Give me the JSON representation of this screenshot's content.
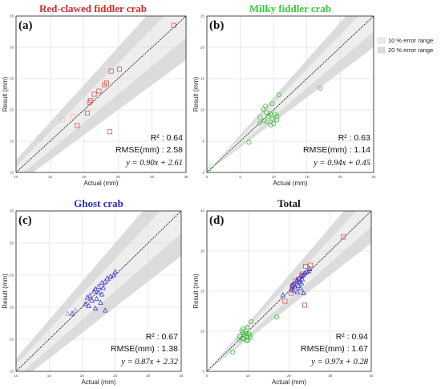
{
  "legend": {
    "placement": "top-right",
    "items": [
      {
        "label": "10 % error range",
        "color": "#eeeeee"
      },
      {
        "label": "20 % error range",
        "color": "#dcdcdc"
      }
    ]
  },
  "chart_data": [
    {
      "type": "scatter",
      "tag": "(a)",
      "title": "Red-clawed fiddler crab",
      "title_color": "#d22b2b",
      "xlabel": "Actual (mm)",
      "ylabel": "Result (mm)",
      "xlim": [
        10,
        35
      ],
      "ylim": [
        10,
        35
      ],
      "xticks": [
        10,
        15,
        20,
        25,
        30,
        35
      ],
      "yticks": [
        10,
        15,
        20,
        25,
        30,
        35
      ],
      "grid": true,
      "marker": "square",
      "series": [
        {
          "color": "#d9534f",
          "x": [
            33.2,
            25.2,
            24.0,
            23.3,
            23.0,
            22.2,
            21.5,
            21.0,
            20.8,
            20.5,
            19.0,
            23.8
          ],
          "y": [
            33.5,
            26.5,
            26.2,
            24.3,
            24.0,
            23.0,
            22.5,
            21.5,
            21.2,
            19.5,
            17.5,
            16.5
          ]
        },
        {
          "color": "#f2b8b5",
          "x": [
            18.4,
            16.8,
            13.5
          ],
          "y": [
            19.0,
            18.4,
            15.6
          ]
        }
      ],
      "stats": {
        "r2": "R² : 0.64",
        "rmse": "RMSE(mm) : 2.58",
        "equation": "y = 0.90x + 2.61"
      }
    },
    {
      "type": "scatter",
      "tag": "(b)",
      "title": "Milky fiddler crab",
      "title_color": "#3ec93e",
      "xlabel": "Actual (mm)",
      "ylabel": "Result (mm)",
      "xlim": [
        0,
        25
      ],
      "ylim": [
        0,
        25
      ],
      "xticks": [
        0,
        5,
        10,
        15,
        20,
        25
      ],
      "yticks": [
        0,
        5,
        10,
        15,
        20,
        25
      ],
      "grid": true,
      "marker": "circle",
      "series": [
        {
          "color": "#3dbf3d",
          "x": [
            17.0,
            10.8,
            9.8,
            8.8,
            8.5,
            8.9,
            9.5,
            10.2,
            10.5,
            9.2,
            8.0,
            9.8,
            10.5,
            8.6,
            9.0,
            7.9,
            10.0,
            9.6,
            6.3
          ],
          "y": [
            13.5,
            12.4,
            11.0,
            10.6,
            10.1,
            9.6,
            9.4,
            9.3,
            9.0,
            9.0,
            8.8,
            8.6,
            8.4,
            8.3,
            8.1,
            7.9,
            7.8,
            7.6,
            4.8
          ]
        },
        {
          "color": "#a8e6a8",
          "x": [
            0.8,
            0.4
          ],
          "y": [
            1.0,
            0.5
          ]
        }
      ],
      "stats": {
        "r2": "R² : 0.63",
        "rmse": "RMSE(mm) : 1.14",
        "equation": "y = 0.94x + 0.45"
      }
    },
    {
      "type": "scatter",
      "tag": "(c)",
      "title": "Ghost crab",
      "title_color": "#2a2ad0",
      "xlabel": "Actual (mm)",
      "ylabel": "Result (mm)",
      "xlim": [
        10,
        35
      ],
      "ylim": [
        10,
        35
      ],
      "xticks": [
        10,
        15,
        20,
        25,
        30,
        35
      ],
      "yticks": [
        10,
        15,
        20,
        25,
        30,
        35
      ],
      "grid": true,
      "marker": "triangle",
      "series": [
        {
          "color": "#3a3ad6",
          "x": [
            25.0,
            24.8,
            24.3,
            23.8,
            23.5,
            23.0,
            22.5,
            23.2,
            22.0,
            21.8,
            22.5,
            23.0,
            21.2,
            20.8,
            22.2,
            21.5,
            22.8,
            20.5,
            21.0,
            22.0,
            23.5,
            18.5
          ],
          "y": [
            25.5,
            25.0,
            24.8,
            24.5,
            24.0,
            23.8,
            23.2,
            23.0,
            22.8,
            22.5,
            22.3,
            22.0,
            21.8,
            21.5,
            21.3,
            21.0,
            20.7,
            20.5,
            20.2,
            19.8,
            19.5,
            19.0
          ]
        },
        {
          "color": "#9a9ae8",
          "x": [
            19.0,
            17.8
          ],
          "y": [
            19.5,
            19.0
          ]
        }
      ],
      "stats": {
        "r2": "R² : 0.67",
        "rmse": "RMSE(mm) : 1.38",
        "equation": "y = 0.87x + 2.32"
      }
    },
    {
      "type": "scatter",
      "tag": "(d)",
      "title": "Total",
      "title_color": "#111111",
      "xlabel": "Actual (mm)",
      "ylabel": "Result (mm)",
      "xlim": [
        0,
        40
      ],
      "ylim": [
        0,
        40
      ],
      "xticks": [
        0,
        10,
        20,
        30,
        40
      ],
      "yticks": [
        0,
        10,
        20,
        30,
        40
      ],
      "grid": true,
      "marker": "mixed",
      "series": [
        {
          "marker": "square",
          "color": "#d9534f",
          "x": [
            33.2,
            25.2,
            24.0,
            23.3,
            23.0,
            22.2,
            21.5,
            21.0,
            20.8,
            20.5,
            19.0,
            23.8
          ],
          "y": [
            33.5,
            26.5,
            26.2,
            24.3,
            24.0,
            23.0,
            22.5,
            21.5,
            21.2,
            19.5,
            17.5,
            16.5
          ]
        },
        {
          "marker": "circle",
          "color": "#3dbf3d",
          "x": [
            17.0,
            10.8,
            9.8,
            8.8,
            8.5,
            8.9,
            9.5,
            10.2,
            10.5,
            9.2,
            8.0,
            9.8,
            10.5,
            8.6,
            9.0,
            7.9,
            10.0,
            9.6,
            6.3
          ],
          "y": [
            13.5,
            12.4,
            11.0,
            10.6,
            10.1,
            9.6,
            9.4,
            9.3,
            9.0,
            9.0,
            8.8,
            8.6,
            8.4,
            8.3,
            8.1,
            7.9,
            7.8,
            7.6,
            4.8
          ]
        },
        {
          "marker": "triangle",
          "color": "#3a3ad6",
          "x": [
            25.0,
            24.8,
            24.3,
            23.8,
            23.5,
            23.0,
            22.5,
            23.2,
            22.0,
            21.8,
            22.5,
            23.0,
            21.2,
            20.8,
            22.2,
            21.5,
            22.8,
            20.5,
            21.0,
            22.0,
            23.5,
            18.5
          ],
          "y": [
            25.5,
            25.0,
            24.8,
            24.5,
            24.0,
            23.8,
            23.2,
            23.0,
            22.8,
            22.5,
            22.3,
            22.0,
            21.8,
            21.5,
            21.3,
            21.0,
            20.7,
            20.5,
            20.2,
            19.8,
            19.5,
            19.0
          ]
        }
      ],
      "stats": {
        "r2": "R² : 0.94",
        "rmse": "RMSE(mm) : 1.67",
        "equation": "y = 0.97x + 0.28"
      }
    }
  ]
}
